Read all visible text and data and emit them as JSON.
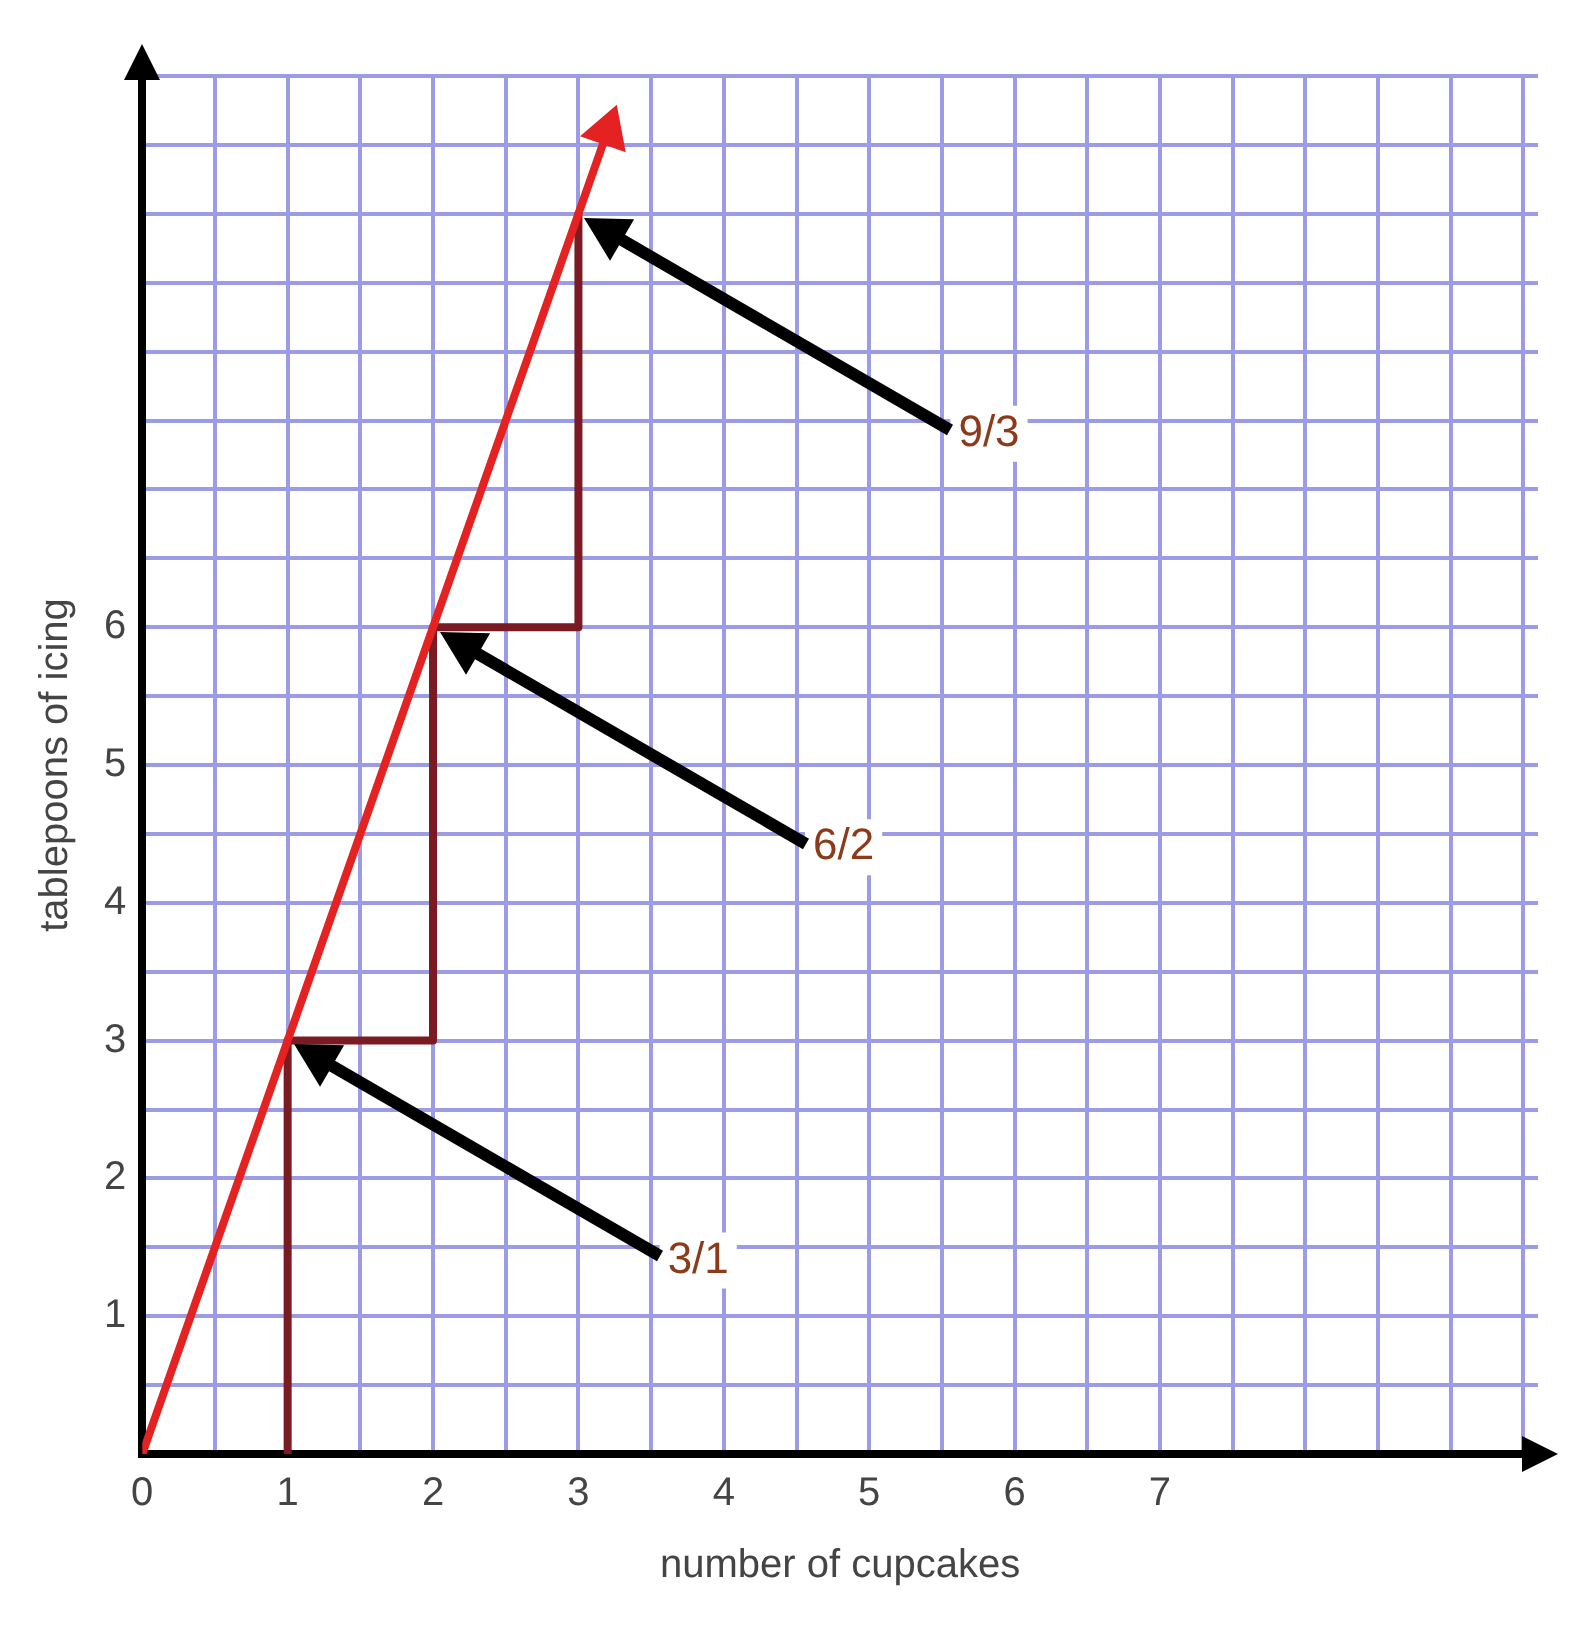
{
  "chart_data": {
    "type": "line",
    "xlabel": "number of cupcakes",
    "ylabel": "tablepoons of icing",
    "xlim": [
      0,
      9.6
    ],
    "ylim": [
      0,
      10
    ],
    "xticks": [
      0,
      {
        "value": 0.5,
        "label": null
      },
      1,
      {
        "value": 1.5,
        "label": null
      },
      2,
      {
        "value": 2.5,
        "label": null
      },
      3,
      {
        "value": 3.5,
        "label": null
      },
      4,
      {
        "value": 4.5,
        "label": null
      },
      5,
      {
        "value": 5.5,
        "label": null
      },
      6,
      {
        "value": 6.5,
        "label": null
      },
      7,
      {
        "value": 7.5,
        "label": null
      },
      {
        "value": 8,
        "label": null
      },
      {
        "value": 8.5,
        "label": null
      },
      {
        "value": 9,
        "label": null
      },
      {
        "value": 9.5,
        "label": null
      }
    ],
    "yticks": [
      {
        "value": 0,
        "label": null
      },
      {
        "value": 0.5,
        "label": null
      },
      1,
      {
        "value": 1.5,
        "label": null
      },
      2,
      {
        "value": 2.5,
        "label": null
      },
      3,
      {
        "value": 3.5,
        "label": null
      },
      4,
      {
        "value": 4.5,
        "label": null
      },
      5,
      {
        "value": 5.5,
        "label": null
      },
      6,
      {
        "value": 6.5,
        "label": null
      },
      {
        "value": 7,
        "label": null
      },
      {
        "value": 7.5,
        "label": null
      },
      {
        "value": 8,
        "label": null
      },
      {
        "value": 8.5,
        "label": null
      },
      {
        "value": 9,
        "label": null
      },
      {
        "value": 9.5,
        "label": null
      },
      {
        "value": 10,
        "label": null
      }
    ],
    "grid": true,
    "marker": "none",
    "line_style": "solid",
    "series": [
      {
        "color": "#e42222",
        "marker": "triangle",
        "x": [
          0,
          3.2
        ],
        "values": [
          0,
          9.6
        ]
      },
      {
        "color": "#7a1a22",
        "x": [
          1,
          1,
          2,
          2,
          3,
          3
        ],
        "values": [
          0,
          3,
          3,
          6,
          6,
          9
        ]
      }
    ],
    "annotations": [
      "3/1",
      "6/2",
      "9/3"
    ]
  }
}
